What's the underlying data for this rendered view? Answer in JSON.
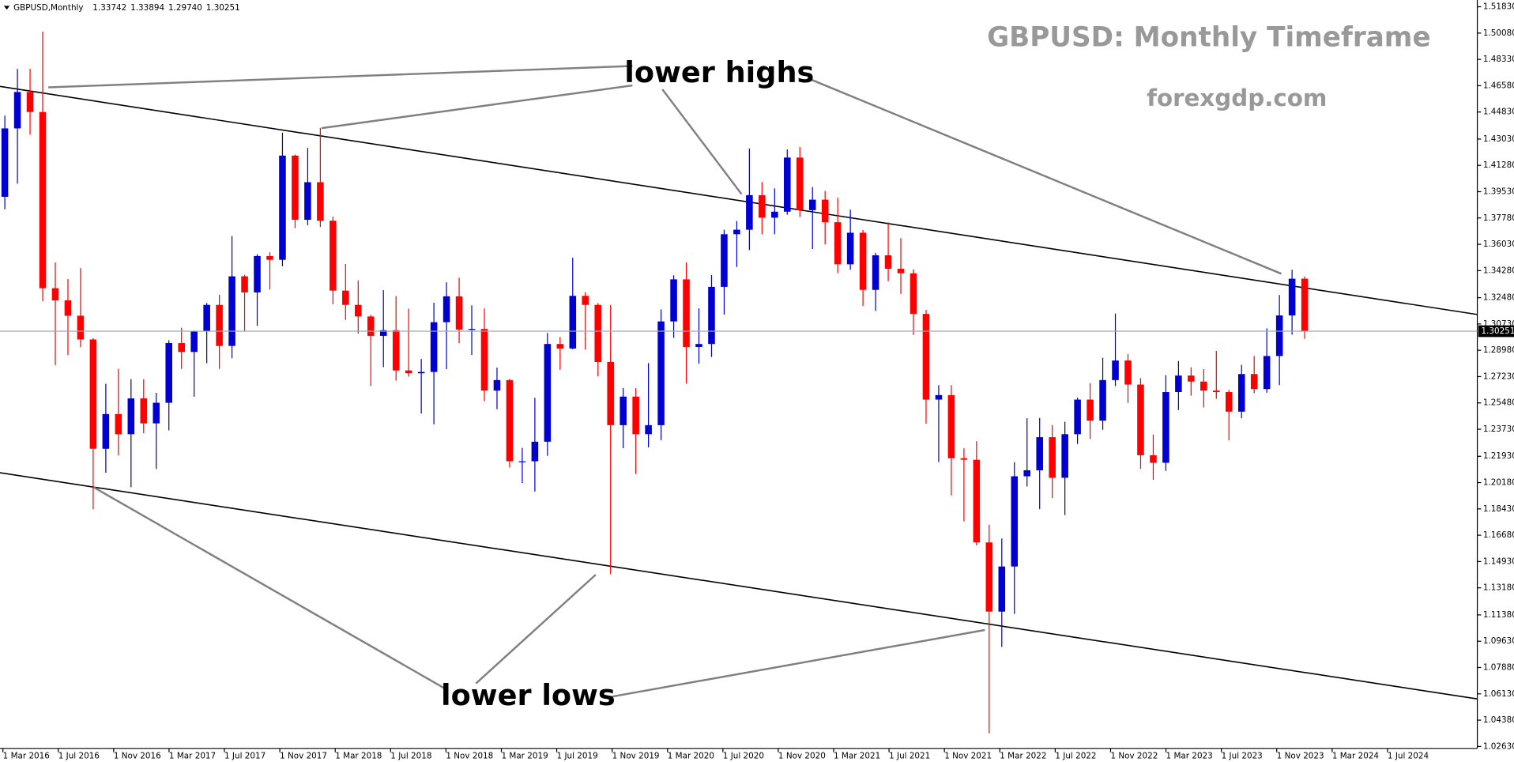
{
  "chart_data": {
    "type": "candlestick",
    "header": {
      "symbol": "GBPUSD,Monthly",
      "ohlc": [
        "1.33742",
        "1.33894",
        "1.29740",
        "1.30251"
      ]
    },
    "title": "GBPUSD: Monthly Timeframe",
    "subtitle": "forexgdp.com",
    "annotations": [
      "lower highs",
      "lower lows"
    ],
    "up_color": "#0000d0",
    "down_color": "#ff0000",
    "price_line_color": "#9aa8b8",
    "categories": [
      "1 Mar 2016",
      null,
      null,
      null,
      "1 Jul 2016",
      null,
      null,
      null,
      "1 Nov 2016",
      null,
      null,
      null,
      "1 Mar 2017",
      null,
      null,
      null,
      "1 Jul 2017",
      null,
      null,
      null,
      "1 Nov 2017",
      null,
      null,
      null,
      "1 Mar 2018",
      null,
      null,
      null,
      "1 Jul 2018",
      null,
      null,
      null,
      "1 Nov 2018",
      null,
      null,
      null,
      "1 Mar 2019",
      null,
      null,
      null,
      "1 Jul 2019",
      null,
      null,
      null,
      "1 Nov 2019",
      null,
      null,
      null,
      "1 Mar 2020",
      null,
      null,
      null,
      "1 Jul 2020",
      null,
      null,
      null,
      "1 Nov 2020",
      null,
      null,
      null,
      "1 Mar 2021",
      null,
      null,
      null,
      "1 Jul 2021",
      null,
      null,
      null,
      "1 Nov 2021",
      null,
      null,
      null,
      "1 Mar 2022",
      null,
      null,
      null,
      "1 Jul 2022",
      null,
      null,
      null,
      "1 Nov 2022",
      null,
      null,
      null,
      "1 Mar 2023",
      null,
      null,
      null,
      "1 Jul 2023",
      null,
      null,
      null,
      "1 Nov 2023",
      null,
      null,
      null,
      "1 Mar 2024",
      null,
      null,
      null,
      "1 Jul 2024",
      null,
      null,
      null
    ],
    "open": [
      1.3919,
      1.4374,
      1.4616,
      1.4483,
      1.3311,
      1.323,
      1.3128,
      1.297,
      1.2243,
      1.2474,
      1.234,
      1.2578,
      1.2412,
      1.2549,
      1.2946,
      1.2887,
      1.3025,
      1.32,
      1.2927,
      1.339,
      1.3283,
      1.3525,
      1.35,
      1.4193,
      1.3766,
      1.4016,
      1.376,
      1.3295,
      1.32,
      1.3123,
      1.2994,
      1.3032,
      1.2764,
      1.2745,
      1.2754,
      1.3085,
      1.3257,
      1.3036,
      1.304,
      1.263,
      1.27,
      1.216,
      1.216,
      1.229,
      1.294,
      1.291,
      1.326,
      1.32,
      1.282,
      1.24,
      1.259,
      1.234,
      1.24,
      1.309,
      1.337,
      1.292,
      1.294,
      1.332,
      1.367,
      1.37,
      1.393,
      1.378,
      1.382,
      1.418,
      1.383,
      1.39,
      1.375,
      1.347,
      1.368,
      1.33,
      1.353,
      1.344,
      1.341,
      1.314,
      1.257,
      1.26,
      1.218,
      1.217,
      1.162,
      1.116,
      1.146,
      1.206,
      1.21,
      1.232,
      1.205,
      1.234,
      1.257,
      1.243,
      1.27,
      1.283,
      1.267,
      1.22,
      1.215,
      1.262,
      1.273,
      1.269,
      1.263,
      1.262,
      1.249,
      1.274,
      1.264,
      1.286,
      1.313,
      1.33742
    ],
    "high": [
      1.4459,
      1.477,
      1.477,
      1.5018,
      1.3482,
      1.3372,
      1.3445,
      1.298,
      1.2675,
      1.2775,
      1.2706,
      1.2706,
      1.2615,
      1.2965,
      1.3048,
      1.3029,
      1.3213,
      1.3267,
      1.3657,
      1.34,
      1.3537,
      1.355,
      1.4346,
      1.42,
      1.4244,
      1.4377,
      1.3787,
      1.3472,
      1.3363,
      1.3134,
      1.3298,
      1.3258,
      1.3175,
      1.284,
      1.3214,
      1.335,
      1.3381,
      1.3197,
      1.3176,
      1.2783,
      1.2708,
      1.2249,
      1.2582,
      1.3013,
      1.2986,
      1.3514,
      1.3285,
      1.3212,
      1.32,
      1.2647,
      1.2646,
      1.2813,
      1.317,
      1.3397,
      1.3482,
      1.3177,
      1.3398,
      1.37,
      1.3758,
      1.424,
      1.4017,
      1.3975,
      1.4234,
      1.425,
      1.3984,
      1.3958,
      1.3913,
      1.3834,
      1.3698,
      1.3547,
      1.3749,
      1.3644,
      1.3437,
      1.3167,
      1.2666,
      1.2666,
      1.2246,
      1.2293,
      1.1738,
      1.1646,
      1.2154,
      1.2446,
      1.2448,
      1.2401,
      1.2423,
      1.2583,
      1.268,
      1.2848,
      1.3142,
      1.2873,
      1.2713,
      1.2337,
      1.2733,
      1.2827,
      1.2785,
      1.2773,
      1.2894,
      1.2635,
      1.2801,
      1.286,
      1.3044,
      1.3266,
      1.3434,
      1.33894
    ],
    "low": [
      1.3836,
      1.4006,
      1.4332,
      1.3224,
      1.2798,
      1.2866,
      1.2919,
      1.1841,
      1.2084,
      1.2198,
      1.1987,
      1.2346,
      1.2109,
      1.2365,
      1.2774,
      1.2589,
      1.2812,
      1.2774,
      1.2845,
      1.3027,
      1.3061,
      1.3303,
      1.3457,
      1.371,
      1.373,
      1.3718,
      1.3204,
      1.31,
      1.301,
      1.2661,
      1.2786,
      1.2696,
      1.2723,
      1.2477,
      1.2405,
      1.2773,
      1.2945,
      1.2867,
      1.2559,
      1.2506,
      1.2118,
      1.2015,
      1.1959,
      1.2196,
      1.2769,
      1.2905,
      1.2903,
      1.2725,
      1.1409,
      1.2247,
      1.2075,
      1.2252,
      1.23,
      1.2981,
      1.2676,
      1.2809,
      1.2854,
      1.3135,
      1.3452,
      1.3565,
      1.3669,
      1.367,
      1.38,
      1.3786,
      1.3572,
      1.3602,
      1.3412,
      1.3434,
      1.3194,
      1.316,
      1.3358,
      1.3273,
      1.3,
      1.241,
      1.2155,
      1.1933,
      1.176,
      1.16,
      1.035,
      1.0925,
      1.1145,
      1.1992,
      1.1841,
      1.1915,
      1.1802,
      1.2275,
      1.2308,
      1.2369,
      1.2659,
      1.2548,
      1.211,
      1.2037,
      1.2096,
      1.25,
      1.2596,
      1.2518,
      1.2575,
      1.23,
      1.2446,
      1.2612,
      1.2616,
      1.2666,
      1.3002,
      1.2974
    ],
    "close": [
      1.4374,
      1.4616,
      1.4483,
      1.3311,
      1.323,
      1.3128,
      1.297,
      1.2243,
      1.2474,
      1.234,
      1.2578,
      1.2412,
      1.2549,
      1.2946,
      1.2887,
      1.3025,
      1.32,
      1.2927,
      1.339,
      1.3283,
      1.3525,
      1.35,
      1.4193,
      1.3766,
      1.4016,
      1.376,
      1.3295,
      1.32,
      1.3123,
      1.2994,
      1.3032,
      1.2764,
      1.2745,
      1.2754,
      1.3085,
      1.3257,
      1.3036,
      1.304,
      1.263,
      1.27,
      1.216,
      1.216,
      1.229,
      1.294,
      1.291,
      1.326,
      1.32,
      1.282,
      1.24,
      1.259,
      1.234,
      1.24,
      1.309,
      1.337,
      1.292,
      1.294,
      1.332,
      1.367,
      1.37,
      1.393,
      1.378,
      1.382,
      1.418,
      1.383,
      1.39,
      1.375,
      1.347,
      1.368,
      1.33,
      1.353,
      1.344,
      1.341,
      1.314,
      1.257,
      1.26,
      1.218,
      1.217,
      1.162,
      1.116,
      1.146,
      1.206,
      1.21,
      1.232,
      1.205,
      1.234,
      1.257,
      1.243,
      1.27,
      1.283,
      1.267,
      1.22,
      1.215,
      1.262,
      1.273,
      1.269,
      1.263,
      1.262,
      1.249,
      1.274,
      1.264,
      1.286,
      1.313,
      1.33742,
      1.30251
    ],
    "ylim": [
      1.025,
      1.5228
    ],
    "yticks": [
      {
        "value": 1.5183,
        "label": "1.51830"
      },
      {
        "value": 1.5008,
        "label": "1.50080"
      },
      {
        "value": 1.4833,
        "label": "1.48330"
      },
      {
        "value": 1.4658,
        "label": "1.46580"
      },
      {
        "value": 1.4483,
        "label": "1.44830"
      },
      {
        "value": 1.4303,
        "label": "1.43030"
      },
      {
        "value": 1.4128,
        "label": "1.41280"
      },
      {
        "value": 1.3953,
        "label": "1.39530"
      },
      {
        "value": 1.3778,
        "label": "1.37780"
      },
      {
        "value": 1.3603,
        "label": "1.36030"
      },
      {
        "value": 1.3428,
        "label": "1.34280"
      },
      {
        "value": 1.3248,
        "label": "1.32480"
      },
      {
        "value": 1.3073,
        "label": "1.30730"
      },
      {
        "value": 1.2898,
        "label": "1.28980"
      },
      {
        "value": 1.2723,
        "label": "1.27230"
      },
      {
        "value": 1.2548,
        "label": "1.25480"
      },
      {
        "value": 1.2373,
        "label": "1.23730"
      },
      {
        "value": 1.2193,
        "label": "1.21930"
      },
      {
        "value": 1.2018,
        "label": "1.20180"
      },
      {
        "value": 1.1843,
        "label": "1.18430"
      },
      {
        "value": 1.1668,
        "label": "1.16680"
      },
      {
        "value": 1.1493,
        "label": "1.14930"
      },
      {
        "value": 1.1318,
        "label": "1.13180"
      },
      {
        "value": 1.1138,
        "label": "1.11380"
      },
      {
        "value": 1.0963,
        "label": "1.09630"
      },
      {
        "value": 1.0788,
        "label": "1.07880"
      },
      {
        "value": 1.0613,
        "label": "1.06130"
      },
      {
        "value": 1.0438,
        "label": "1.04380"
      },
      {
        "value": 1.0263,
        "label": "1.02630"
      }
    ]
  }
}
